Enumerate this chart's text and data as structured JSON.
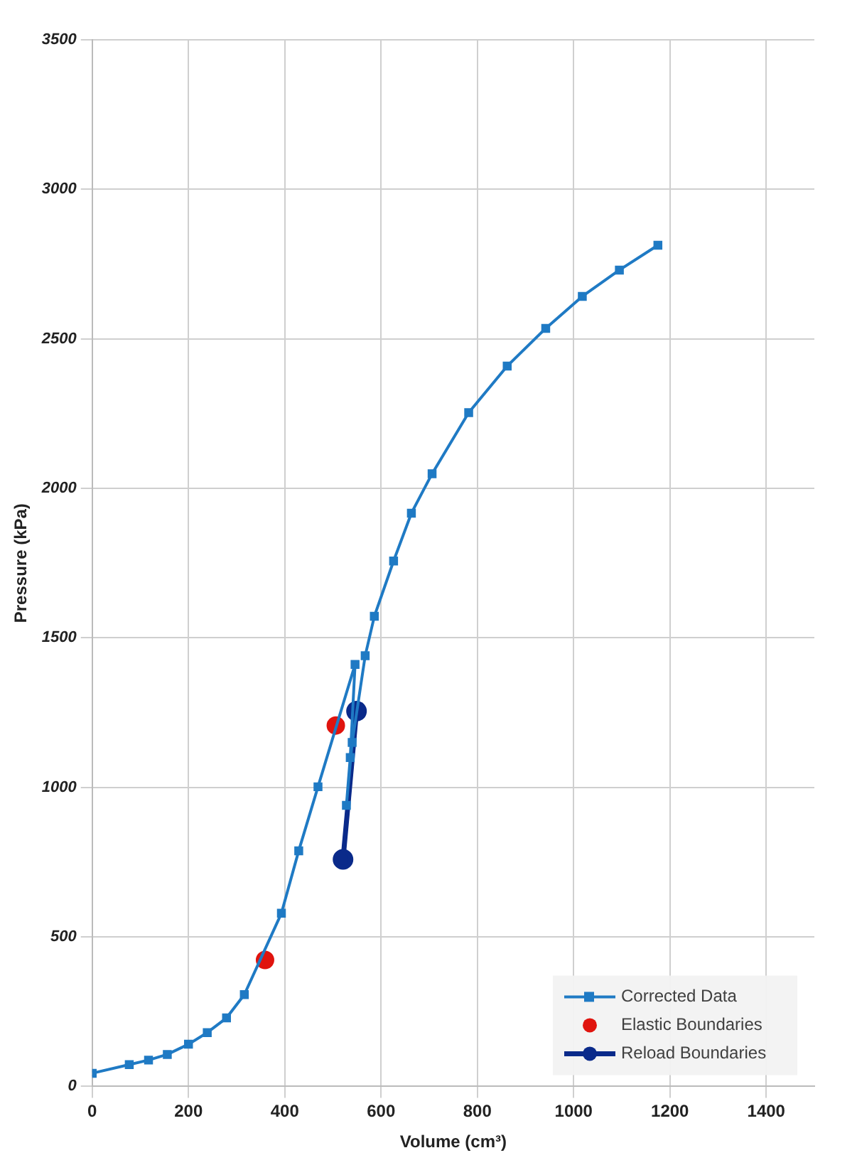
{
  "chart_data": {
    "type": "line",
    "xlabel": "Volume (cm³)",
    "ylabel": "Pressure (kPa)",
    "xlim": [
      0,
      1500
    ],
    "xticks": [
      0,
      200,
      400,
      600,
      800,
      1000,
      1200,
      1400
    ],
    "ylim": [
      0,
      3500
    ],
    "yticks": [
      0,
      500,
      1000,
      1500,
      2000,
      2500,
      3000,
      3500
    ],
    "grid": true,
    "legend": "bottom right",
    "series": [
      {
        "name": "Corrected Data",
        "color": "#1f7ac4",
        "marker": "square",
        "x": [
          0,
          77,
          117,
          156,
          200,
          239,
          279,
          316,
          393,
          429,
          469,
          546,
          536,
          528,
          540,
          567,
          586,
          626,
          663,
          706,
          782,
          862,
          942,
          1018,
          1095,
          1175
        ],
        "values": [
          44,
          73,
          88,
          107,
          141,
          180,
          229,
          307,
          579,
          788,
          1002,
          1411,
          1100,
          940,
          1150,
          1440,
          1572,
          1757,
          1917,
          2049,
          2253,
          2409,
          2535,
          2642,
          2730,
          2813
        ]
      },
      {
        "name": "Elastic Boundaries",
        "type": "scatter",
        "color": "#e0140e",
        "marker": "circle",
        "x": [
          359,
          506
        ],
        "values": [
          423,
          1207
        ]
      },
      {
        "name": "Reload Boundaries",
        "color": "#0a2a8a",
        "marker": "circle",
        "x": [
          521,
          549
        ],
        "values": [
          759,
          1255
        ]
      }
    ]
  }
}
